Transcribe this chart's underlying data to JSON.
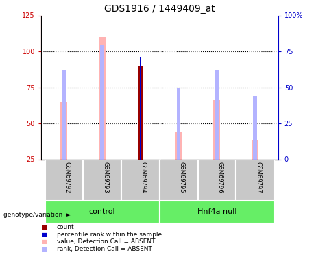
{
  "title": "GDS1916 / 1449409_at",
  "samples": [
    "GSM69792",
    "GSM69793",
    "GSM69794",
    "GSM69795",
    "GSM69796",
    "GSM69797"
  ],
  "group_labels": [
    "control",
    "Hnf4a null"
  ],
  "value_bars": [
    65,
    110,
    44,
    66,
    38
  ],
  "value_bar_indices": [
    0,
    1,
    3,
    4,
    5
  ],
  "rank_bars": [
    62,
    80,
    50,
    62,
    44
  ],
  "rank_bar_indices": [
    0,
    1,
    3,
    4,
    5
  ],
  "count_val": 90,
  "count_idx": 2,
  "percentile_val": 71,
  "percentile_idx": 2,
  "left_ylim": [
    25,
    125
  ],
  "right_ylim": [
    0,
    100
  ],
  "left_yticks": [
    25,
    50,
    75,
    100,
    125
  ],
  "right_yticks": [
    0,
    25,
    50,
    75,
    100
  ],
  "right_yticklabels": [
    "0",
    "25",
    "50",
    "75",
    "100%"
  ],
  "left_color": "#cc0000",
  "right_color": "#0000cc",
  "value_bar_color": "#ffb3b3",
  "rank_bar_color": "#b3b3ff",
  "count_color": "#990000",
  "percentile_color": "#0000cc",
  "green_color": "#66ee66",
  "gray_color": "#c8c8c8",
  "white_color": "#ffffff",
  "bar_bottom": 25,
  "thin_bar_width": 0.18,
  "rank_bar_width": 0.1,
  "count_bar_width": 0.13,
  "percentile_bar_width": 0.05,
  "figsize": [
    4.61,
    3.75
  ],
  "dpi": 100,
  "legend_items": [
    [
      "#990000",
      "count"
    ],
    [
      "#0000cc",
      "percentile rank within the sample"
    ],
    [
      "#ffb3b3",
      "value, Detection Call = ABSENT"
    ],
    [
      "#b3b3ff",
      "rank, Detection Call = ABSENT"
    ]
  ]
}
